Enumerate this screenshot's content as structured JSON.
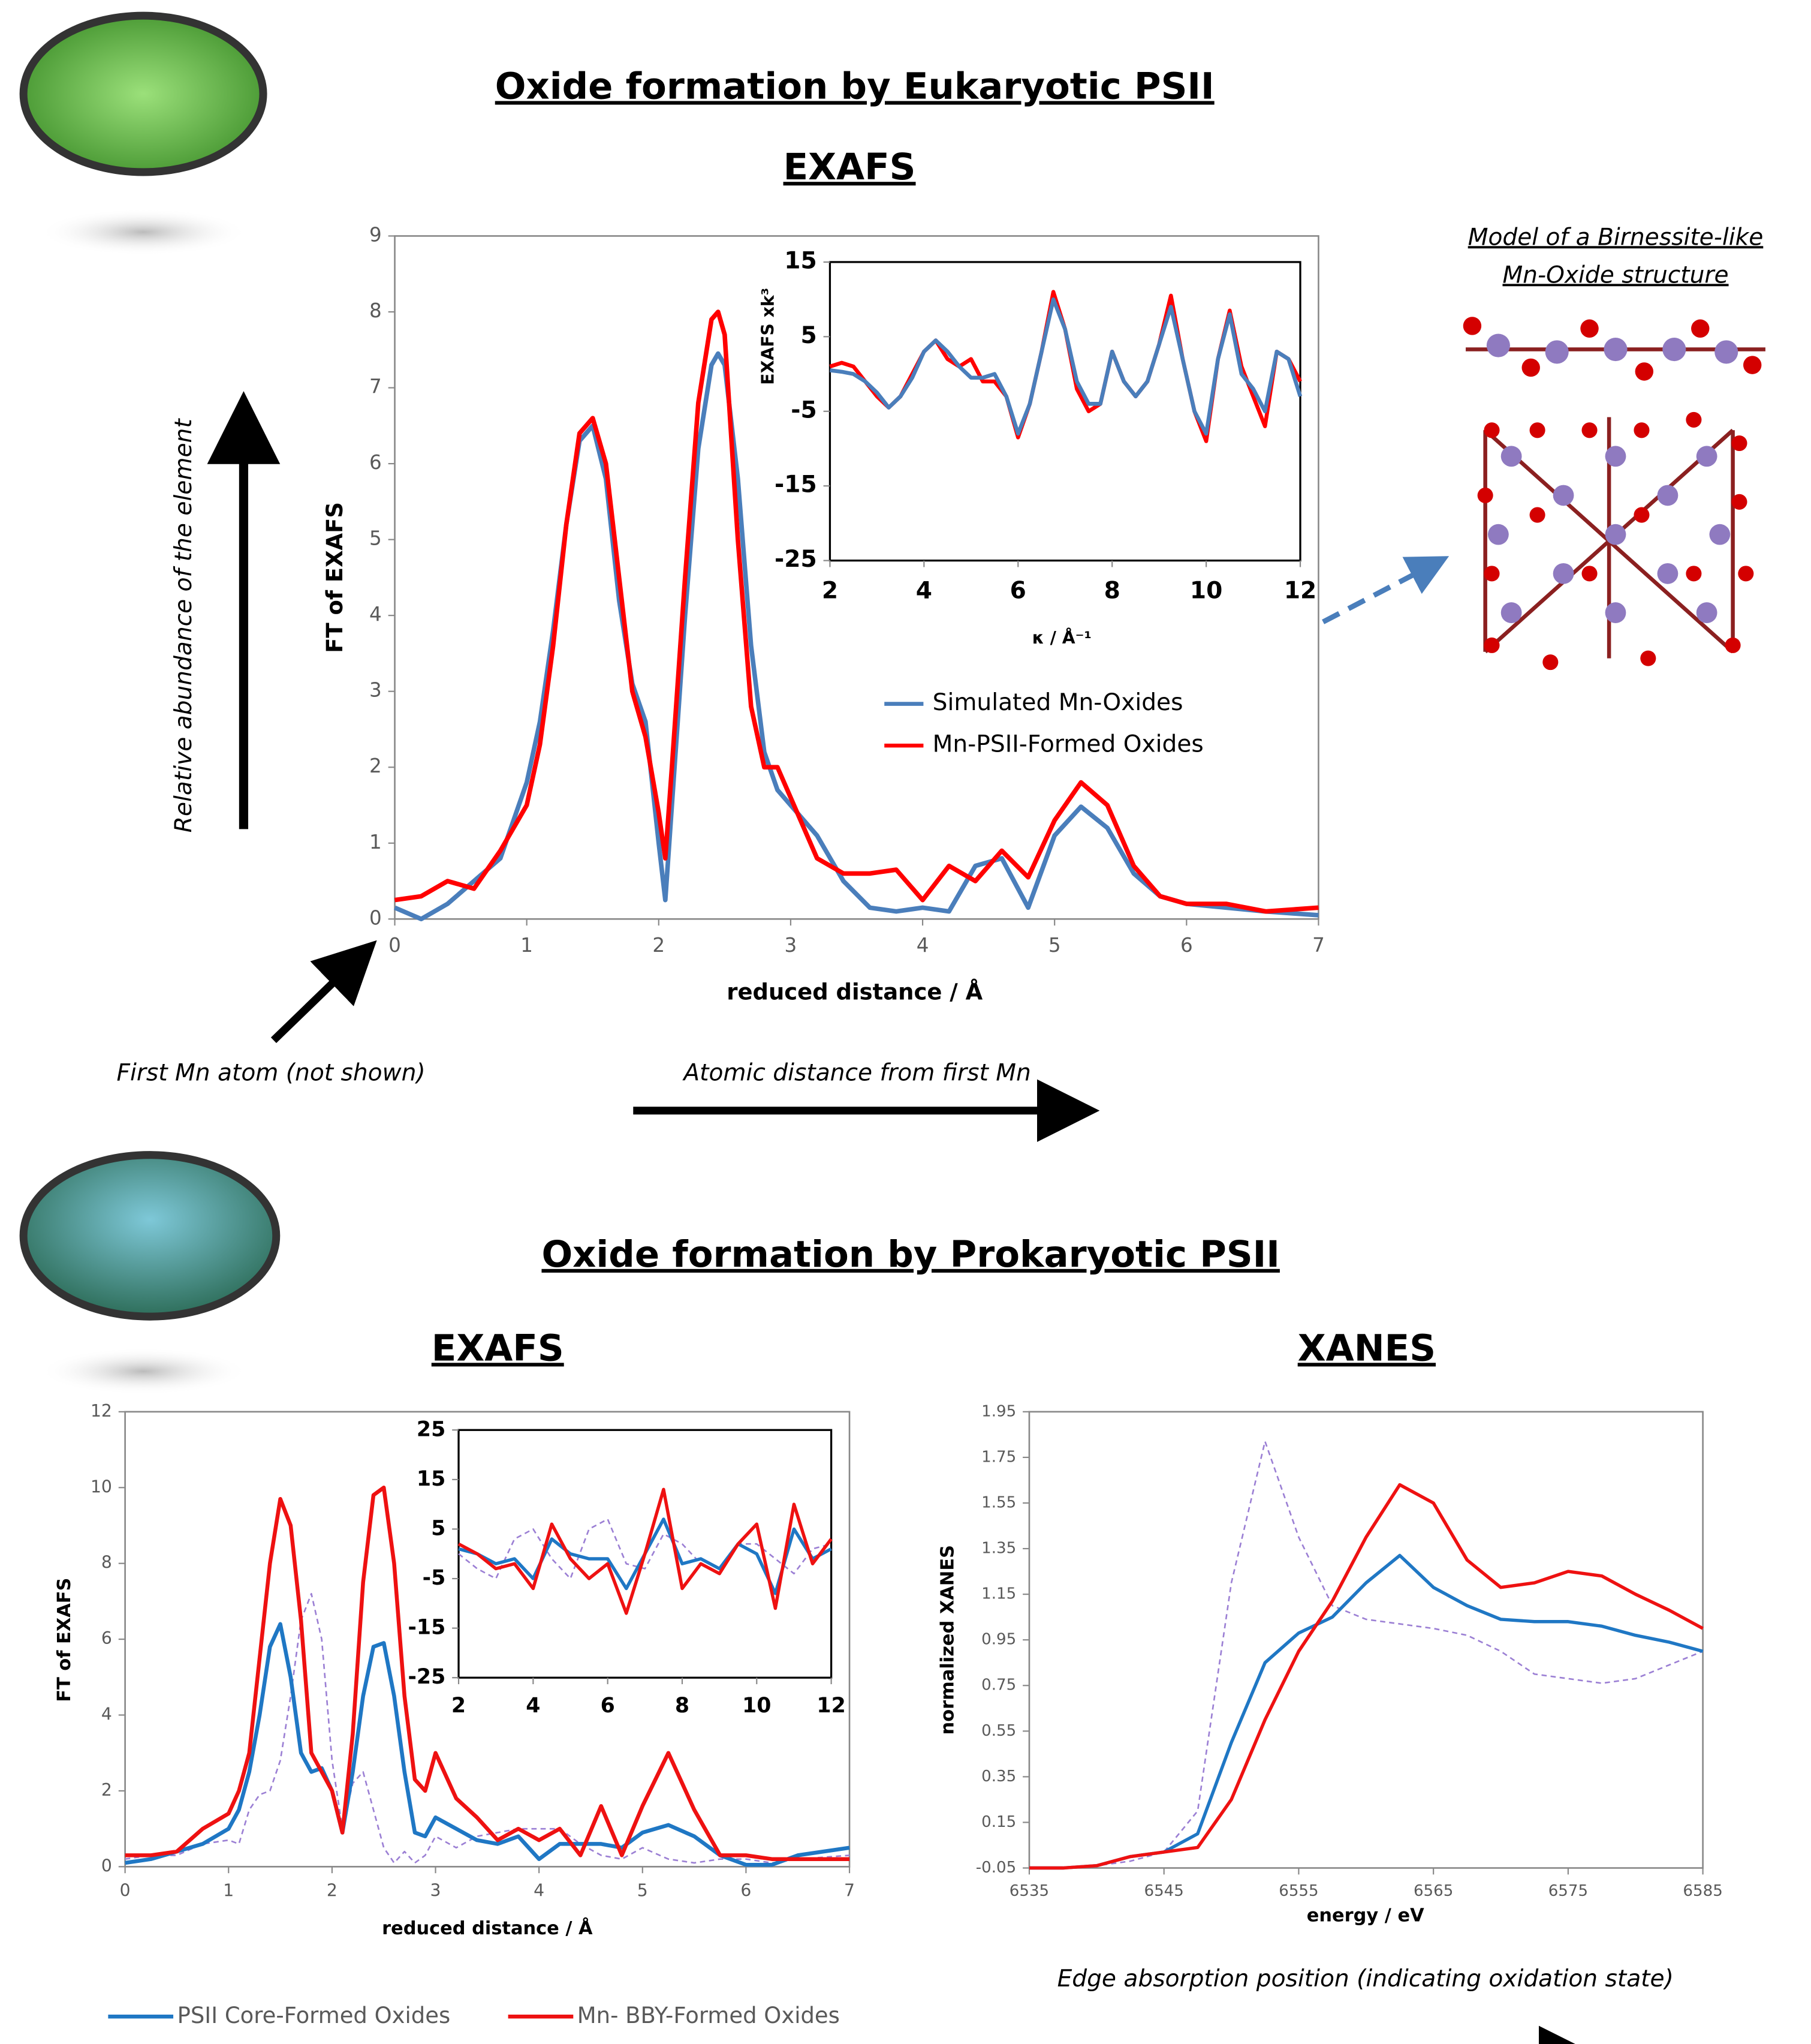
{
  "page": {
    "eukaryotic_title": "Oxide formation by Eukaryotic PSII",
    "model_title_1": "Model of a Birnessite-like",
    "model_title_2": "Mn-Oxide structure",
    "y_arrow_label": "Relative abundance of the element",
    "first_atom_label": "First Mn atom (not shown)",
    "x_arrow_label": "Atomic distance from first Mn",
    "prokaryotic_title": "Oxide formation by Prokaryotic PSII",
    "edge_label": "Edge absorption position (indicating oxidation state)"
  },
  "chart_data": [
    {
      "type": "line",
      "title": "EXAFS",
      "xlabel": "reduced distance / Å",
      "ylabel": "FT of EXAFS",
      "xlim": [
        0,
        7
      ],
      "xticks": [
        0,
        1,
        2,
        3,
        4,
        5,
        6,
        7
      ],
      "ylim": [
        0,
        9
      ],
      "yticks": [
        0,
        1,
        2,
        3,
        4,
        5,
        6,
        7,
        8,
        9
      ],
      "grid": false,
      "legend": "center-right",
      "x": [
        0,
        0.2,
        0.4,
        0.6,
        0.8,
        1.0,
        1.1,
        1.2,
        1.3,
        1.4,
        1.5,
        1.6,
        1.7,
        1.8,
        1.9,
        2.0,
        2.05,
        2.1,
        2.2,
        2.3,
        2.4,
        2.45,
        2.5,
        2.6,
        2.7,
        2.8,
        2.9,
        3.0,
        3.2,
        3.4,
        3.6,
        3.8,
        4.0,
        4.2,
        4.4,
        4.6,
        4.8,
        5.0,
        5.2,
        5.4,
        5.6,
        5.8,
        6.0,
        6.3,
        6.6,
        7.0
      ],
      "series": [
        {
          "name": "Simulated Mn-Oxides",
          "color": "#4a7ebb",
          "values": [
            0.15,
            0.0,
            0.2,
            0.5,
            0.8,
            1.8,
            2.6,
            3.8,
            5.2,
            6.3,
            6.5,
            5.8,
            4.2,
            3.1,
            2.6,
            1.0,
            0.25,
            1.5,
            4.0,
            6.2,
            7.3,
            7.45,
            7.3,
            5.8,
            3.6,
            2.2,
            1.7,
            1.5,
            1.1,
            0.5,
            0.15,
            0.1,
            0.15,
            0.1,
            0.7,
            0.8,
            0.15,
            1.1,
            1.48,
            1.2,
            0.6,
            0.3,
            0.2,
            0.15,
            0.1,
            0.05
          ]
        },
        {
          "name": "Mn-PSII-Formed Oxides",
          "color": "#ff0000",
          "values": [
            0.25,
            0.3,
            0.5,
            0.4,
            0.9,
            1.5,
            2.3,
            3.6,
            5.2,
            6.4,
            6.6,
            6.0,
            4.5,
            3.0,
            2.4,
            1.4,
            0.8,
            2.0,
            4.5,
            6.8,
            7.9,
            8.0,
            7.7,
            5.0,
            2.8,
            2.0,
            2.0,
            1.6,
            0.8,
            0.6,
            0.6,
            0.65,
            0.25,
            0.7,
            0.5,
            0.9,
            0.55,
            1.3,
            1.8,
            1.5,
            0.7,
            0.3,
            0.2,
            0.2,
            0.1,
            0.15
          ]
        }
      ]
    },
    {
      "type": "line",
      "xlabel": "κ / Å⁻¹",
      "ylabel": "EXAFS xk³",
      "xlim": [
        2,
        12
      ],
      "xticks": [
        2,
        4,
        6,
        8,
        10,
        12
      ],
      "ylim": [
        -25,
        15
      ],
      "yticks": [
        -25,
        -15,
        -5,
        5,
        15
      ],
      "grid": false,
      "x": [
        2,
        2.25,
        2.5,
        2.75,
        3,
        3.25,
        3.5,
        3.75,
        4,
        4.25,
        4.5,
        4.75,
        5,
        5.25,
        5.5,
        5.75,
        6,
        6.25,
        6.5,
        6.75,
        7,
        7.25,
        7.5,
        7.75,
        8,
        8.25,
        8.5,
        8.75,
        9,
        9.25,
        9.5,
        9.75,
        10,
        10.25,
        10.5,
        10.75,
        11,
        11.25,
        11.5,
        11.75,
        12
      ],
      "series": [
        {
          "color": "#ff0000",
          "values": [
            1,
            1.5,
            1,
            -1,
            -3,
            -4.5,
            -3,
            0,
            3,
            4.5,
            2,
            1,
            2,
            -1,
            -1,
            -3,
            -8.5,
            -4,
            3,
            11,
            6,
            -2,
            -5,
            -4,
            3,
            -1,
            -3,
            -1,
            4,
            10.5,
            2,
            -5,
            -9,
            2,
            8.5,
            1,
            -3,
            -7,
            3,
            2,
            -1
          ]
        },
        {
          "color": "#4a7ebb",
          "values": [
            0.5,
            0.3,
            0,
            -1,
            -2.5,
            -4.5,
            -3,
            -0.5,
            3,
            4.5,
            3,
            1,
            -0.5,
            -0.5,
            0,
            -3,
            -8,
            -4,
            3,
            10,
            6,
            -1,
            -4,
            -4,
            3,
            -1,
            -3,
            -1,
            4,
            9,
            2,
            -5,
            -8,
            2,
            8,
            0,
            -2,
            -5,
            3,
            2,
            -3
          ]
        }
      ]
    },
    {
      "type": "line",
      "title": "EXAFS",
      "xlabel": "reduced distance / Å",
      "ylabel": "FT of EXAFS",
      "xlim": [
        0,
        7
      ],
      "xticks": [
        0,
        1,
        2,
        3,
        4,
        5,
        6,
        7
      ],
      "ylim": [
        0,
        12
      ],
      "yticks": [
        0,
        2,
        4,
        6,
        8,
        10,
        12
      ],
      "grid": false,
      "legend": "below",
      "x": [
        0,
        0.25,
        0.5,
        0.75,
        1,
        1.1,
        1.2,
        1.3,
        1.4,
        1.5,
        1.6,
        1.7,
        1.8,
        1.9,
        2,
        2.1,
        2.2,
        2.3,
        2.4,
        2.5,
        2.6,
        2.7,
        2.8,
        2.9,
        3,
        3.2,
        3.4,
        3.6,
        3.8,
        4,
        4.2,
        4.4,
        4.6,
        4.8,
        5,
        5.25,
        5.5,
        5.75,
        6,
        6.25,
        6.5,
        7
      ],
      "series": [
        {
          "color": "#9b7fd4",
          "style": "dashed",
          "values": [
            0.2,
            0.3,
            0.3,
            0.6,
            0.7,
            0.6,
            1.5,
            1.9,
            2.0,
            2.8,
            4.5,
            6.5,
            7.2,
            6.0,
            2.8,
            1.0,
            2.2,
            2.5,
            1.5,
            0.5,
            0.1,
            0.4,
            0.1,
            0.3,
            0.8,
            0.5,
            0.8,
            0.9,
            1.0,
            1.0,
            1.0,
            0.6,
            0.3,
            0.2,
            0.5,
            0.2,
            0.1,
            0.2,
            0.2,
            0.1,
            0.2,
            0.3
          ]
        },
        {
          "name": "PSII Core-Formed Oxides",
          "color": "#1f77c4",
          "values": [
            0.1,
            0.2,
            0.4,
            0.6,
            1.0,
            1.5,
            2.5,
            4.0,
            5.8,
            6.4,
            5.0,
            3.0,
            2.5,
            2.6,
            2.0,
            0.9,
            2.5,
            4.5,
            5.8,
            5.9,
            4.5,
            2.5,
            0.9,
            0.8,
            1.3,
            1.0,
            0.7,
            0.6,
            0.8,
            0.2,
            0.6,
            0.6,
            0.6,
            0.5,
            0.9,
            1.1,
            0.8,
            0.3,
            0.05,
            0.05,
            0.3,
            0.5
          ]
        },
        {
          "name": "Mn- BBY-Formed Oxides",
          "color": "#ee1111",
          "values": [
            0.3,
            0.3,
            0.4,
            1.0,
            1.4,
            2.0,
            3.0,
            5.5,
            8.0,
            9.7,
            9.0,
            6.5,
            3.0,
            2.5,
            2.0,
            0.9,
            3.5,
            7.5,
            9.8,
            10.0,
            8.0,
            4.5,
            2.3,
            2.0,
            3.0,
            1.8,
            1.3,
            0.7,
            1.0,
            0.7,
            1.0,
            0.3,
            1.6,
            0.3,
            1.6,
            3.0,
            1.5,
            0.3,
            0.3,
            0.2,
            0.2,
            0.2
          ]
        }
      ]
    },
    {
      "type": "line",
      "xlim": [
        2,
        12
      ],
      "xticks": [
        2,
        4,
        6,
        8,
        10,
        12
      ],
      "ylim": [
        -25,
        25
      ],
      "yticks": [
        -25,
        -15,
        -5,
        5,
        15,
        25
      ],
      "grid": false,
      "x": [
        2,
        2.5,
        3,
        3.5,
        4,
        4.5,
        5,
        5.5,
        6,
        6.5,
        7,
        7.5,
        8,
        8.5,
        9,
        9.5,
        10,
        10.5,
        11,
        11.5,
        12
      ],
      "series": [
        {
          "color": "#9b7fd4",
          "style": "dashed",
          "values": [
            0,
            -3,
            -5,
            3,
            5,
            -1,
            -5,
            5,
            7,
            -2,
            -3,
            4,
            2,
            -2,
            -4,
            2,
            2,
            -1,
            -4,
            1,
            2
          ]
        },
        {
          "color": "#1f77c4",
          "values": [
            1,
            0,
            -2,
            -1,
            -5,
            3,
            0,
            -1,
            -1,
            -7,
            0,
            7,
            -2,
            -1,
            -3,
            2,
            0,
            -8,
            5,
            -1,
            1
          ]
        },
        {
          "color": "#ee1111",
          "values": [
            2,
            0,
            -3,
            -2,
            -7,
            6,
            -1,
            -5,
            -2,
            -12,
            0,
            13,
            -7,
            -2,
            -4,
            2,
            6,
            -11,
            10,
            -2,
            3
          ]
        }
      ]
    },
    {
      "type": "line",
      "title": "XANES",
      "xlabel": "energy / eV",
      "ylabel": "normalized XANES",
      "xlim": [
        6535,
        6585
      ],
      "xticks": [
        6535,
        6545,
        6555,
        6565,
        6575,
        6585
      ],
      "ylim": [
        -0.05,
        1.95
      ],
      "yticks": [
        -0.05,
        0.15,
        0.35,
        0.55,
        0.75,
        0.95,
        1.15,
        1.35,
        1.55,
        1.75,
        1.95
      ],
      "grid": false,
      "x": [
        6535,
        6537.5,
        6540,
        6542.5,
        6545,
        6547.5,
        6550,
        6552.5,
        6555,
        6557.5,
        6560,
        6562.5,
        6565,
        6567.5,
        6570,
        6572.5,
        6575,
        6577.5,
        6580,
        6582.5,
        6585
      ],
      "series": [
        {
          "color": "#9b7fd4",
          "style": "dashed",
          "values": [
            -0.05,
            -0.05,
            -0.04,
            -0.02,
            0.02,
            0.2,
            1.2,
            1.82,
            1.4,
            1.1,
            1.04,
            1.02,
            1.0,
            0.97,
            0.9,
            0.8,
            0.78,
            0.76,
            0.78,
            0.84,
            0.9
          ]
        },
        {
          "color": "#1f77c4",
          "values": [
            -0.05,
            -0.05,
            -0.04,
            0.0,
            0.02,
            0.1,
            0.5,
            0.85,
            0.98,
            1.05,
            1.2,
            1.32,
            1.18,
            1.1,
            1.04,
            1.03,
            1.03,
            1.01,
            0.97,
            0.94,
            0.9
          ]
        },
        {
          "color": "#ee1111",
          "values": [
            -0.05,
            -0.05,
            -0.04,
            0.0,
            0.02,
            0.04,
            0.25,
            0.6,
            0.9,
            1.12,
            1.4,
            1.63,
            1.55,
            1.3,
            1.18,
            1.2,
            1.25,
            1.23,
            1.15,
            1.08,
            1.0
          ]
        }
      ]
    }
  ]
}
